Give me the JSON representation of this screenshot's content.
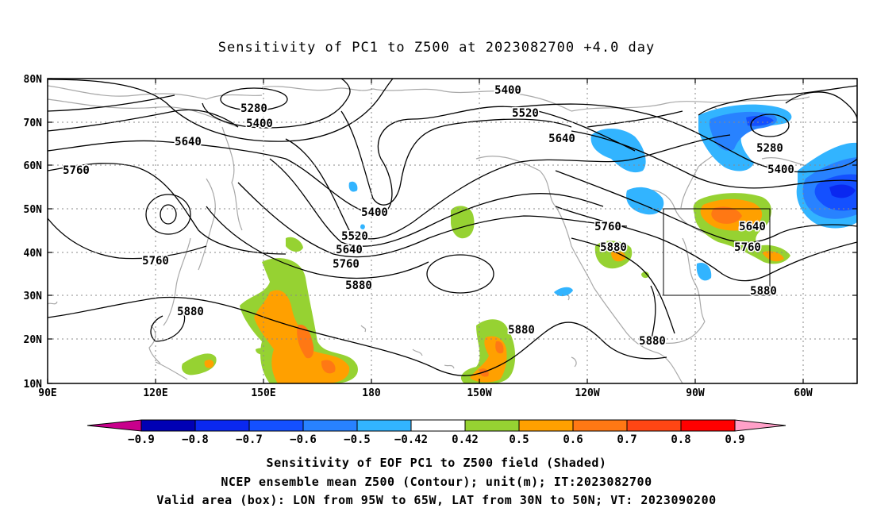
{
  "title": "Sensitivity of PC1 to Z500 at 2023082700 +4.0 day",
  "lat_ticks": [
    "80N",
    "70N",
    "60N",
    "50N",
    "40N",
    "30N",
    "20N",
    "10N"
  ],
  "lon_ticks": [
    "90E",
    "120E",
    "150E",
    "180",
    "150W",
    "120W",
    "90W",
    "60W"
  ],
  "contour_labels": [
    {
      "text": "5280"
    },
    {
      "text": "5400"
    },
    {
      "text": "5400"
    },
    {
      "text": "5520"
    },
    {
      "text": "5640"
    },
    {
      "text": "5640"
    },
    {
      "text": "5760"
    },
    {
      "text": "5400"
    },
    {
      "text": "5520"
    },
    {
      "text": "5640"
    },
    {
      "text": "5760"
    },
    {
      "text": "5880"
    },
    {
      "text": "5760"
    },
    {
      "text": "5880"
    },
    {
      "text": "5760"
    },
    {
      "text": "5880"
    },
    {
      "text": "5880"
    },
    {
      "text": "5880"
    },
    {
      "text": "5640"
    },
    {
      "text": "5760"
    },
    {
      "text": "5880"
    },
    {
      "text": "5280"
    },
    {
      "text": "5400"
    }
  ],
  "colorbar": {
    "labels": [
      "−0.9",
      "−0.8",
      "−0.7",
      "−0.6",
      "−0.5",
      "−0.42",
      "0.42",
      "0.5",
      "0.6",
      "0.7",
      "0.8",
      "0.9"
    ],
    "colors": [
      "#0000b4",
      "#0a28f0",
      "#1450ff",
      "#2882ff",
      "#32b4ff",
      "#ffffff",
      "#96d232",
      "#ffa000",
      "#ff7814",
      "#ff4614",
      "#ff0000"
    ],
    "low_extend": "#c8008c",
    "high_extend": "#ffa0c8"
  },
  "captions": {
    "line1": "Sensitivity of EOF PC1 to Z500 field (Shaded)",
    "line2": "NCEP ensemble mean Z500 (Contour); unit(m); IT:2023082700",
    "line3": "Valid area (box): LON from 95W to 65W, LAT from 30N to 50N; VT: 2023090200"
  }
}
